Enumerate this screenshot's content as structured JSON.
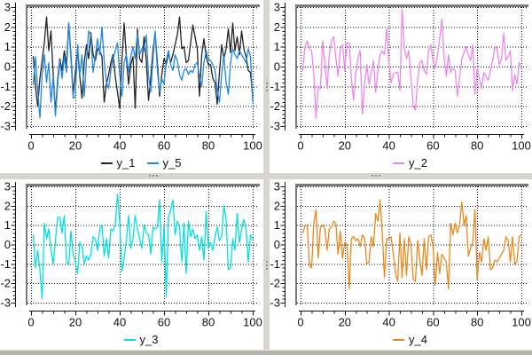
{
  "app": {
    "background_color": "#d6d2cd",
    "pane_color": "#ffffff",
    "canvas_frame_color": "#7b7b7b",
    "grid_color": "#000000",
    "text_color": "#111111",
    "splitter_color": "#d8d4cf",
    "handle_dot_color": "#8f8f8f",
    "bottom_strip_color": "#b6b3ae"
  },
  "chart_data": [
    {
      "type": "line",
      "position": "top-left",
      "title": "",
      "xlabel": "",
      "ylabel": "",
      "xlim": [
        0,
        100
      ],
      "ylim": [
        -3,
        3
      ],
      "x_ticks": [
        0,
        20,
        40,
        60,
        80,
        100
      ],
      "y_ticks": [
        3,
        2,
        1,
        0,
        -1,
        -2,
        -3
      ],
      "x_minor_step": 5,
      "y_minor_step": 0.2,
      "grid": "dotted",
      "legend_position": "below",
      "x": {
        "start": 1,
        "step": 1,
        "count": 100
      },
      "series": [
        {
          "name": "y_1",
          "color": "#222222",
          "values": [
            0.5,
            -1.0,
            -2.0,
            -0.6,
            0.3,
            1.2,
            2.5,
            0.8,
            1.8,
            -0.4,
            -2.3,
            -0.7,
            0.4,
            -0.2,
            0.8,
            0.1,
            2.2,
            0.6,
            -1.4,
            -0.3,
            0.9,
            -0.5,
            -1.6,
            0.2,
            1.1,
            0.4,
            1.7,
            0.6,
            0.3,
            0.9,
            0.8,
            0.5,
            -1.8,
            -0.9,
            -0.4,
            0.2,
            0.6,
            -0.5,
            -1.3,
            -2.1,
            0.3,
            2.2,
            0.5,
            -0.9,
            0.1,
            0.5,
            -2.1,
            1.9,
            0.4,
            0.2,
            1.5,
            0.3,
            -1.7,
            -0.6,
            0.8,
            1.7,
            0.2,
            -1.5,
            -0.4,
            0.4,
            0.1,
            0.7,
            0.2,
            0.6,
            1.1,
            1.6,
            2.5,
            0.9,
            1.0,
            0.2,
            0.3,
            1.2,
            2.1,
            1.5,
            0.9,
            -1.5,
            0.6,
            1.4,
            0.5,
            0.1,
            0.1,
            -0.6,
            -0.8,
            -1.9,
            -0.3,
            1.1,
            0.4,
            0.9,
            1.9,
            0.7,
            2.2,
            0.8,
            1.5,
            0.6,
            1.8,
            0.9,
            0.5,
            -0.2,
            -0.3,
            -1.5
          ]
        },
        {
          "name": "y_5",
          "color": "#1f87e8",
          "values": [
            -0.9,
            0.5,
            -1.2,
            -2.6,
            -0.4,
            0.6,
            -0.8,
            0.2,
            -1.8,
            -0.5,
            -2.5,
            -0.9,
            0.3,
            -0.6,
            0.5,
            -0.3,
            2.2,
            0.4,
            -1.6,
            -1.5,
            1.1,
            -0.4,
            0.6,
            -1.5,
            0.3,
            1.8,
            1.6,
            -0.3,
            0.5,
            1.4,
            0.6,
            2.0,
            0.3,
            -0.8,
            -1.1,
            -0.2,
            0.4,
            0.8,
            1.2,
            -0.4,
            -1.5,
            0.2,
            0.6,
            -0.3,
            0.5,
            1.0,
            0.4,
            1.7,
            0.6,
            0.9,
            0.8,
            1.6,
            -0.5,
            -1.3,
            0.4,
            1.8,
            -0.2,
            -1.3,
            -0.6,
            -0.9,
            0.3,
            0.8,
            0.1,
            -0.2,
            0.6,
            0.3,
            -0.4,
            -0.7,
            -0.2,
            -0.1,
            -0.4,
            -0.2,
            -0.3,
            0.1,
            0.2,
            -0.5,
            -1.0,
            0.2,
            0.8,
            0.4,
            0.3,
            0.1,
            -0.2,
            -1.2,
            -1.8,
            -0.4,
            0.6,
            -0.8,
            -1.4,
            0.2,
            0.9,
            0.6,
            0.4,
            0.8,
            0.6,
            0.4,
            0.2,
            0.9,
            0.5,
            -1.8
          ]
        }
      ]
    },
    {
      "type": "line",
      "position": "top-right",
      "title": "",
      "xlabel": "",
      "ylabel": "",
      "xlim": [
        0,
        100
      ],
      "ylim": [
        -3,
        3
      ],
      "x_ticks": [
        0,
        20,
        40,
        60,
        80,
        100
      ],
      "y_ticks": [
        3,
        2,
        1,
        0,
        -1,
        -2,
        -3
      ],
      "x_minor_step": 5,
      "y_minor_step": 0.2,
      "grid": "dotted",
      "legend_position": "below",
      "x": {
        "start": 1,
        "step": 1,
        "count": 100
      },
      "series": [
        {
          "name": "y_2",
          "color": "#ee86ee",
          "values": [
            -0.2,
            1.0,
            1.3,
            0.9,
            0.8,
            -0.4,
            -2.6,
            -1.0,
            -1.1,
            1.3,
            0.2,
            -1.1,
            0.6,
            1.3,
            1.5,
            0.4,
            -0.5,
            0.9,
            1.1,
            -0.2,
            1.2,
            1.2,
            -0.6,
            -1.7,
            -0.3,
            0.4,
            0.8,
            -2.4,
            -0.8,
            0.1,
            -0.9,
            -0.3,
            0.3,
            -1.3,
            -0.2,
            0.6,
            0.8,
            0.6,
            1.9,
            0.2,
            -0.8,
            -0.4,
            -0.3,
            -0.3,
            -1.2,
            2.9,
            0.9,
            0.4,
            0.8,
            -0.5,
            -2.0,
            -2.2,
            -0.7,
            0.2,
            0.3,
            -0.2,
            -0.4,
            0.8,
            1.1,
            0.3,
            -0.1,
            0.6,
            1.4,
            2.4,
            0.5,
            -0.5,
            0.6,
            -0.3,
            -0.1,
            -0.2,
            -1.5,
            -0.6,
            0.4,
            0.7,
            1.0,
            0.6,
            0.3,
            1.1,
            -1.4,
            -0.1,
            -0.6,
            -1.1,
            -0.3,
            -0.5,
            -0.7,
            -0.2,
            0.3,
            1.0,
            0.9,
            0.1,
            0.4,
            1.7,
            0.3,
            0.5,
            0.8,
            -1.2,
            -0.4,
            -0.9,
            0.2,
            -0.1
          ]
        }
      ]
    },
    {
      "type": "line",
      "position": "bottom-left",
      "title": "",
      "xlabel": "",
      "ylabel": "",
      "xlim": [
        0,
        100
      ],
      "ylim": [
        -3,
        3
      ],
      "x_ticks": [
        0,
        20,
        40,
        60,
        80,
        100
      ],
      "y_ticks": [
        3,
        2,
        1,
        0,
        -1,
        -2,
        -3
      ],
      "x_minor_step": 5,
      "y_minor_step": 0.2,
      "grid": "dotted",
      "legend_position": "below",
      "x": {
        "start": 1,
        "step": 1,
        "count": 100
      },
      "series": [
        {
          "name": "y_3",
          "color": "#00e0e0",
          "values": [
            0.5,
            -1.2,
            -0.3,
            -1.3,
            -2.8,
            1.1,
            0.3,
            0.8,
            -0.3,
            -1.0,
            0.2,
            1.4,
            1.4,
            0.6,
            1.5,
            -0.9,
            -1.0,
            0.7,
            -0.5,
            -0.9,
            -1.5,
            0.1,
            -0.1,
            -1.0,
            -0.6,
            -0.8,
            -0.5,
            0.4,
            0.3,
            -0.3,
            0.8,
            1.0,
            -0.6,
            0.3,
            -0.7,
            0.8,
            0.7,
            1.0,
            2.6,
            1.2,
            -1.4,
            -0.7,
            0.2,
            1.5,
            -0.2,
            0.3,
            1.5,
            0.8,
            0.3,
            -0.2,
            1.0,
            0.6,
            0.5,
            -0.5,
            0.9,
            0.8,
            0.9,
            2.3,
            -0.9,
            0.9,
            -2.7,
            1.4,
            1.8,
            2.3,
            0.5,
            1.2,
            0.9,
            -0.9,
            1.1,
            -1.5,
            1.2,
            0.4,
            0.8,
            0.3,
            0.5,
            -0.3,
            0.4,
            -0.8,
            1.7,
            -0.2,
            0.1,
            -0.3,
            0.4,
            0.9,
            0.2,
            0.4,
            2.0,
            1.3,
            -1.3,
            -1.2,
            0.3,
            -0.3,
            1.6,
            0.1,
            0.8,
            1.3,
            0.8,
            -0.9,
            0.5,
            0.3
          ]
        }
      ]
    },
    {
      "type": "line",
      "position": "bottom-right",
      "title": "",
      "xlabel": "",
      "ylabel": "",
      "xlim": [
        0,
        100
      ],
      "ylim": [
        -3,
        3
      ],
      "x_ticks": [
        0,
        20,
        40,
        60,
        80,
        100
      ],
      "y_ticks": [
        3,
        2,
        1,
        0,
        -1,
        -2,
        -3
      ],
      "x_minor_step": 5,
      "y_minor_step": 0.2,
      "grid": "dotted",
      "legend_position": "below",
      "x": {
        "start": 1,
        "step": 1,
        "count": 100
      },
      "series": [
        {
          "name": "y_4",
          "color": "#e8891e",
          "values": [
            0.6,
            1.0,
            1.0,
            -1.1,
            -1.2,
            1.1,
            1.8,
            -0.7,
            0.9,
            1.0,
            0.8,
            -0.3,
            0.8,
            0.9,
            1.2,
            1.1,
            -0.5,
            0.7,
            -0.7,
            0.1,
            0.0,
            -2.3,
            0.3,
            0.4,
            0.2,
            0.3,
            -0.1,
            0.5,
            0.3,
            -1.0,
            -0.9,
            0.4,
            -0.1,
            1.6,
            1.2,
            2.3,
            0.6,
            -1.7,
            0.3,
            0.3,
            0.4,
            -0.5,
            -1.5,
            -1.9,
            0.6,
            -1.7,
            0.3,
            -1.6,
            0.4,
            0.0,
            -1.8,
            -1.9,
            0.2,
            -0.8,
            -1.6,
            0.3,
            -1.3,
            0.4,
            0.5,
            -0.1,
            -2.1,
            -0.4,
            -1.5,
            -0.5,
            -0.7,
            -0.9,
            -2.3,
            1.1,
            0.5,
            1.1,
            0.6,
            1.0,
            2.2,
            1.0,
            1.5,
            -0.6,
            -0.2,
            0.1,
            1.8,
            -1.8,
            -0.4,
            -0.9,
            0.3,
            -0.3,
            0.4,
            -1.3,
            -1.2,
            -0.8,
            -0.9,
            -0.7,
            -0.5,
            -0.3,
            0.4,
            0.2,
            -0.9,
            0.4,
            -1.0,
            -0.9,
            0.4,
            0.5
          ]
        }
      ]
    }
  ]
}
